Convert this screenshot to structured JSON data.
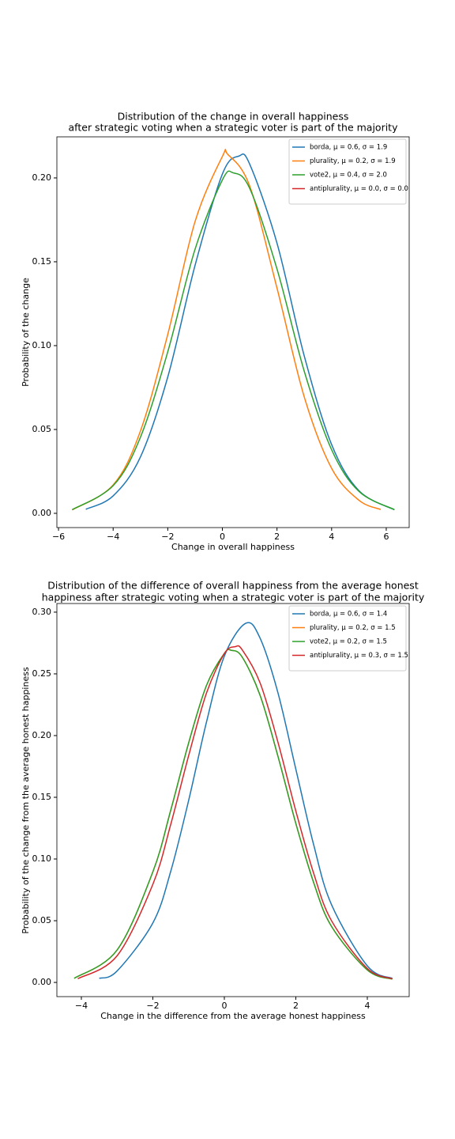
{
  "chart_data": [
    {
      "type": "line",
      "title": [
        "Distribution of the change in overall happiness",
        "after strategic voting when a strategic voter is part of the majority"
      ],
      "xlabel": "Change in overall happiness",
      "ylabel": "Probability of the change",
      "xlim": [
        -6.06,
        6.84
      ],
      "ylim": [
        -0.0085,
        0.2245
      ],
      "xticks": [
        {
          "value": -6,
          "label": "−6"
        },
        {
          "value": -4,
          "label": "−4"
        },
        {
          "value": -2,
          "label": "−2"
        },
        0,
        2,
        4,
        6
      ],
      "yticks": [
        {
          "value": 0,
          "label": "0.00"
        },
        {
          "value": 0.05,
          "label": "0.05"
        },
        {
          "value": 0.1,
          "label": "0.10"
        },
        {
          "value": 0.15,
          "label": "0.15"
        },
        {
          "value": 0.2,
          "label": "0.20"
        }
      ],
      "legend": "upper right",
      "series": [
        {
          "name": "borda, μ = 0.6, σ = 1.9",
          "color": "#1f77b4",
          "x": [
            -5,
            -4,
            -3,
            -2,
            -1,
            0,
            0.6,
            1,
            2,
            3,
            4,
            5,
            6.3
          ],
          "values": [
            0.0024,
            0.0104,
            0.0336,
            0.0813,
            0.1479,
            0.2023,
            0.213,
            0.2082,
            0.1611,
            0.0937,
            0.041,
            0.0135,
            0.0021
          ]
        },
        {
          "name": "plurality, μ = 0.2, σ = 1.9",
          "color": "#ff7f0e",
          "x": [
            -5.5,
            -4,
            -3,
            -2,
            -1,
            0,
            0.2,
            1,
            2,
            3,
            4,
            5,
            5.8
          ],
          "values": [
            0.002,
            0.0169,
            0.0491,
            0.1067,
            0.174,
            0.2128,
            0.214,
            0.1952,
            0.1343,
            0.0693,
            0.0268,
            0.0078,
            0.0023
          ]
        },
        {
          "name": "vote2, μ = 0.4, σ = 2.0",
          "color": "#2ca02c",
          "x": [
            -5.5,
            -4,
            -3,
            -2,
            -1,
            0,
            0.4,
            1,
            2,
            3,
            4,
            5,
            6.3
          ],
          "values": [
            0.0022,
            0.0165,
            0.0454,
            0.0963,
            0.1575,
            0.1988,
            0.203,
            0.1938,
            0.1457,
            0.0846,
            0.0379,
            0.0131,
            0.0022
          ]
        },
        {
          "name": "antiplurality, μ = 0.0, σ = 0.0",
          "color": "#d62728",
          "x": [],
          "values": []
        }
      ]
    },
    {
      "type": "line",
      "title": [
        "Distribution of the difference of overall happiness from the average honest",
        "happiness after strategic voting when a strategic voter is part of the majority"
      ],
      "xlabel": "Change in the difference from the average honest happiness",
      "ylabel": "Probability of the change from the average honest happiness",
      "xlim": [
        -4.685,
        5.171
      ],
      "ylim": [
        -0.0115,
        0.307
      ],
      "xticks": [
        {
          "value": -4,
          "label": "−4"
        },
        {
          "value": -2,
          "label": "−2"
        },
        0,
        2,
        4
      ],
      "yticks": [
        {
          "value": 0,
          "label": "0.00"
        },
        {
          "value": 0.05,
          "label": "0.05"
        },
        {
          "value": 0.1,
          "label": "0.10"
        },
        {
          "value": 0.15,
          "label": "0.15"
        },
        {
          "value": 0.2,
          "label": "0.20"
        },
        {
          "value": 0.25,
          "label": "0.25"
        },
        {
          "value": 0.3,
          "label": "0.30"
        }
      ],
      "legend": "upper right",
      "series": [
        {
          "name": "borda, μ = 0.6, σ = 1.4",
          "color": "#1f77b4",
          "x": [
            -3.5,
            -3,
            -2,
            -1.5,
            -1,
            -0.5,
            0,
            0.6,
            1,
            1.5,
            2,
            2.5,
            3,
            4,
            4.7
          ],
          "values": [
            0.0033,
            0.0093,
            0.0482,
            0.09,
            0.1473,
            0.2109,
            0.2644,
            0.291,
            0.2789,
            0.2346,
            0.1728,
            0.1114,
            0.0629,
            0.0134,
            0.0033
          ]
        },
        {
          "name": "plurality, μ = 0.2, σ = 1.5",
          "color": "#ff7f0e",
          "x": [
            -4.2,
            -3,
            -2,
            -1.5,
            -1,
            -0.5,
            0,
            0.2,
            0.5,
            1,
            1.5,
            2,
            2.5,
            3,
            4,
            4.7
          ],
          "values": [
            0.0033,
            0.0263,
            0.0896,
            0.1395,
            0.1939,
            0.2406,
            0.2666,
            0.269,
            0.2636,
            0.2326,
            0.1832,
            0.1288,
            0.0808,
            0.0453,
            0.0101,
            0.0027
          ]
        },
        {
          "name": "vote2, μ = 0.2, σ = 1.5",
          "color": "#2ca02c",
          "x": [
            -4.2,
            -3,
            -2,
            -1.5,
            -1,
            -0.5,
            0,
            0.2,
            0.5,
            1,
            1.5,
            2,
            2.5,
            3,
            4,
            4.7
          ],
          "values": [
            0.0033,
            0.0263,
            0.0896,
            0.1395,
            0.1939,
            0.2406,
            0.2666,
            0.269,
            0.2636,
            0.2326,
            0.1832,
            0.1288,
            0.0808,
            0.0453,
            0.0101,
            0.0027
          ]
        },
        {
          "name": "antiplurality, μ = 0.3, σ = 1.5",
          "color": "#d62728",
          "x": [
            -4.1,
            -3,
            -2,
            -1.5,
            -1,
            -0.5,
            0,
            0.3,
            0.5,
            1,
            1.5,
            2,
            2.5,
            3,
            4,
            4.7
          ],
          "values": [
            0.003,
            0.0216,
            0.0795,
            0.128,
            0.1836,
            0.2344,
            0.2664,
            0.272,
            0.2695,
            0.2427,
            0.1946,
            0.1389,
            0.0883,
            0.0499,
            0.0113,
            0.003
          ]
        }
      ]
    }
  ]
}
